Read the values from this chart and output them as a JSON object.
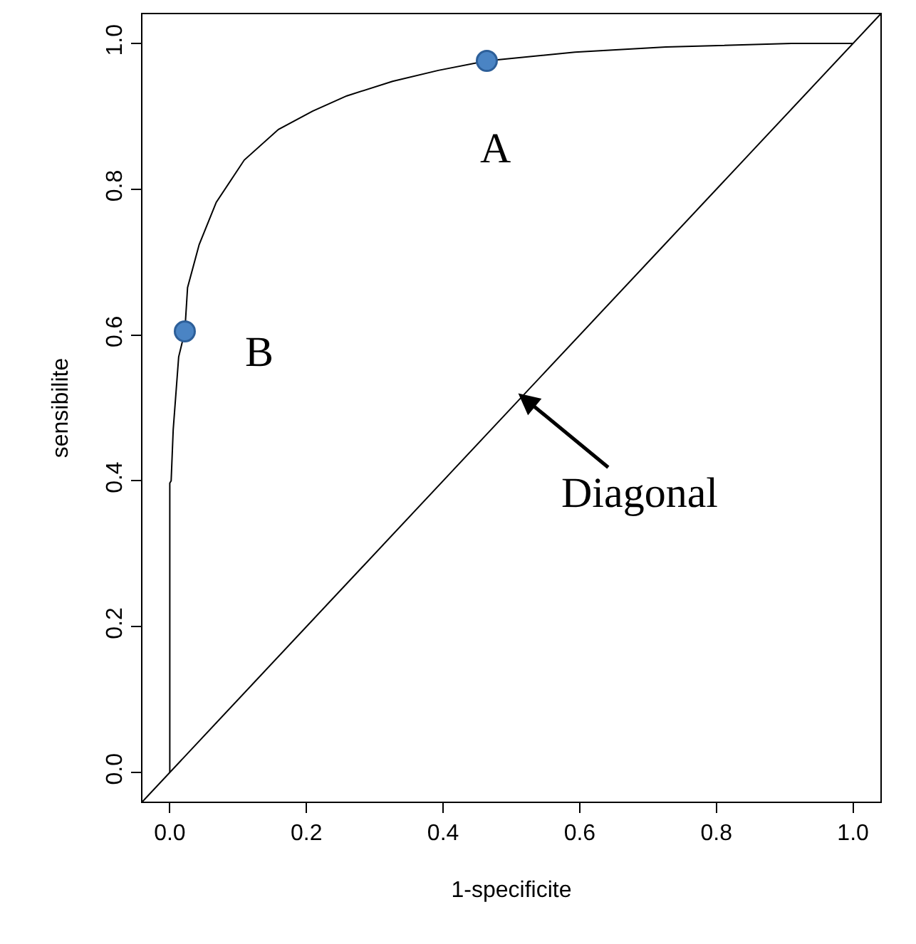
{
  "chart_data": {
    "type": "line",
    "xlabel": "1-specificite",
    "ylabel": "sensibilite",
    "xlim": [
      -0.04,
      1.04
    ],
    "ylim": [
      -0.04,
      1.04
    ],
    "xticks": [
      {
        "value": 0,
        "label": "0.0"
      },
      0.2,
      0.4,
      0.6,
      0.8,
      {
        "value": 1,
        "label": "1.0"
      }
    ],
    "yticks": [
      {
        "value": 0,
        "label": "0.0"
      },
      0.2,
      0.4,
      0.6,
      0.8,
      {
        "value": 1,
        "label": "1.0"
      }
    ],
    "series": [
      {
        "color": "#000000",
        "marker": "none",
        "x": [
          0,
          0,
          0.002,
          0.005,
          0.013,
          0.022,
          0.026,
          0.043,
          0.068,
          0.109,
          0.159,
          0.209,
          0.259,
          0.326,
          0.393,
          0.464,
          0.593,
          0.726,
          0.91,
          1
        ],
        "values": [
          0,
          0.397,
          0.4,
          0.47,
          0.57,
          0.605,
          0.665,
          0.724,
          0.782,
          0.84,
          0.882,
          0.907,
          0.928,
          0.948,
          0.963,
          0.976,
          0.988,
          0.995,
          1.0,
          1.0
        ]
      },
      {
        "color": "#000000",
        "marker": "none",
        "x": [
          -0.04,
          1.04
        ],
        "values": [
          -0.04,
          1.04
        ]
      },
      {
        "type": "scatter",
        "color": "#4a84c4",
        "marker": "circle",
        "x": [
          0.464,
          0.022
        ],
        "values": [
          0.976,
          0.605
        ]
      }
    ],
    "annotations": [
      {
        "text": "A",
        "x": 0.464,
        "y": 0.976
      },
      {
        "text": "B",
        "x": 0.022,
        "y": 0.605
      },
      {
        "text": "Diagonal",
        "x": 0.51,
        "y": 0.52
      }
    ]
  }
}
